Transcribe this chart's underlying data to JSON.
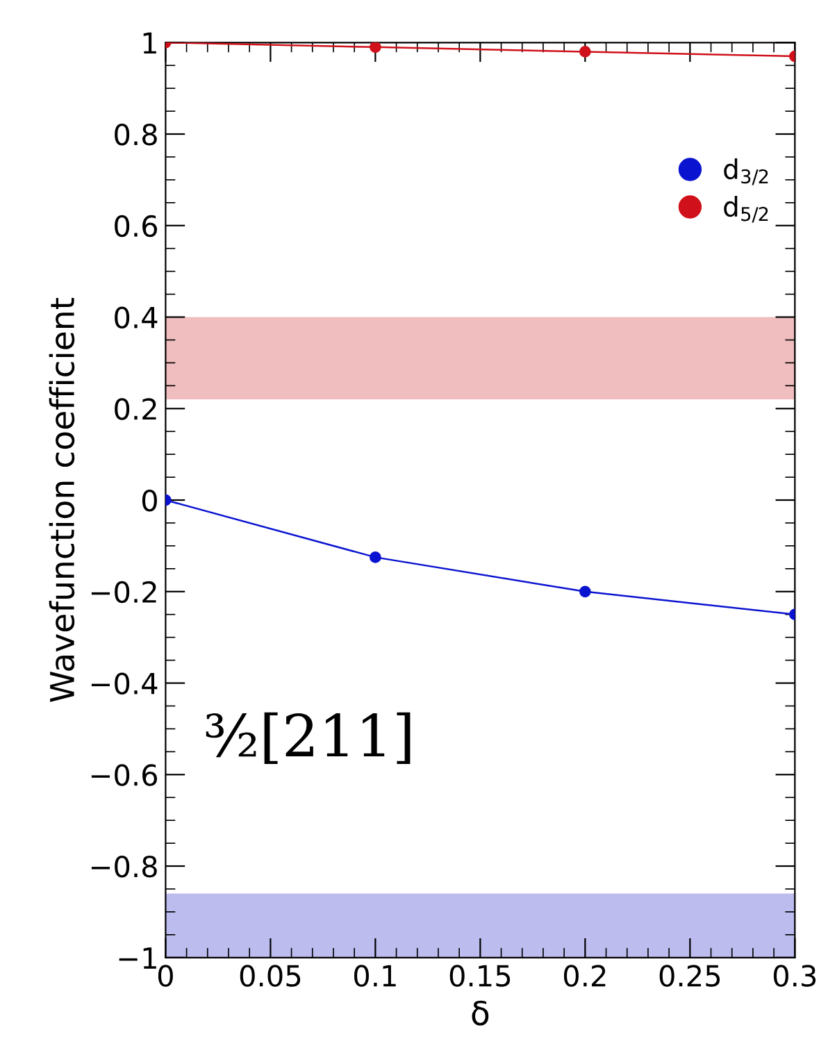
{
  "chart_data": {
    "type": "line",
    "xlabel": "δ",
    "ylabel": "Wavefunction coefficient",
    "x": [
      0,
      0.1,
      0.2,
      0.3
    ],
    "series": [
      {
        "name": "d$_{3/2}$",
        "color": "#0a14d0",
        "values": [
          0,
          -0.125,
          -0.2,
          -0.25
        ]
      },
      {
        "name": "d$_{5/2}$",
        "color": "#d0101a",
        "values": [
          1,
          0.99,
          0.98,
          0.97
        ]
      }
    ],
    "bands": [
      {
        "axis": "y",
        "from": 0.22,
        "to": 0.4,
        "color": "#f0bebe"
      },
      {
        "axis": "y",
        "from": -1,
        "to": -0.86,
        "color": "#bcbcef"
      }
    ],
    "annotations": [
      "³⁄₂[211]"
    ],
    "xlim": [
      0,
      0.3
    ],
    "xticks": [
      0,
      0.05,
      0.1,
      0.15,
      0.2,
      0.25,
      0.3
    ],
    "ylim": [
      -1,
      1
    ],
    "yticks": [
      -1,
      -0.8,
      -0.6,
      -0.4,
      -0.2,
      0,
      0.2,
      0.4,
      0.6,
      0.8,
      1
    ],
    "marker": "circle",
    "line_style": "solid",
    "legend": "top right",
    "grid": false
  }
}
